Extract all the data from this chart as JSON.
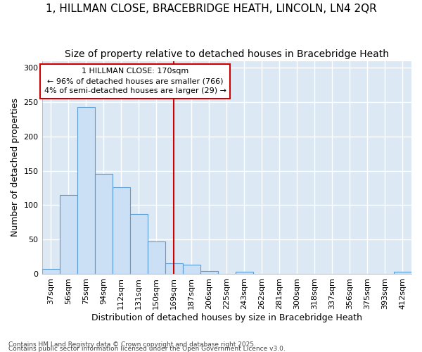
{
  "title1": "1, HILLMAN CLOSE, BRACEBRIDGE HEATH, LINCOLN, LN4 2QR",
  "title2": "Size of property relative to detached houses in Bracebridge Heath",
  "xlabel": "Distribution of detached houses by size in Bracebridge Heath",
  "ylabel": "Number of detached properties",
  "categories": [
    "37sqm",
    "56sqm",
    "75sqm",
    "94sqm",
    "112sqm",
    "131sqm",
    "150sqm",
    "169sqm",
    "187sqm",
    "206sqm",
    "225sqm",
    "243sqm",
    "262sqm",
    "281sqm",
    "300sqm",
    "318sqm",
    "337sqm",
    "356sqm",
    "375sqm",
    "393sqm",
    "412sqm"
  ],
  "values": [
    7,
    115,
    243,
    146,
    126,
    87,
    47,
    15,
    13,
    4,
    0,
    3,
    0,
    0,
    0,
    0,
    0,
    0,
    0,
    0,
    3
  ],
  "bar_color": "#cce0f5",
  "bar_edge_color": "#5b9bd5",
  "subject_line_color": "#cc0000",
  "subject_bar_index": 7,
  "annotation_text": "1 HILLMAN CLOSE: 170sqm\n← 96% of detached houses are smaller (766)\n4% of semi-detached houses are larger (29) →",
  "annotation_box_color": "#ffffff",
  "annotation_box_edge": "#cc0000",
  "ylim": [
    0,
    310
  ],
  "yticks": [
    0,
    50,
    100,
    150,
    200,
    250,
    300
  ],
  "footer1": "Contains HM Land Registry data © Crown copyright and database right 2025.",
  "footer2": "Contains public sector information licensed under the Open Government Licence v3.0.",
  "bg_color": "#ffffff",
  "plot_bg_color": "#dce9f5",
  "grid_color": "#ffffff",
  "title_fontsize": 11,
  "subtitle_fontsize": 10,
  "axis_label_fontsize": 9,
  "tick_fontsize": 8
}
